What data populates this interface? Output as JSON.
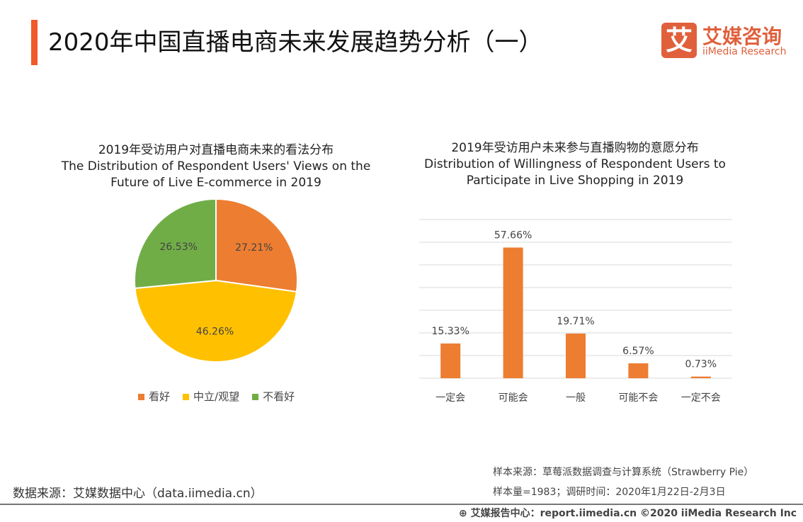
{
  "header": {
    "title": "2020年中国直播电商未来发展趋势分析（一）",
    "accent_color": "#f0592a"
  },
  "logo": {
    "mark": "艾",
    "cn": "艾媒咨询",
    "en": "iiMedia Research",
    "color": "#e0603c"
  },
  "chart_data": [
    {
      "type": "pie",
      "title_cn": "2019年受访用户对直播电商未来的看法分布",
      "title_en": "The Distribution of Respondent Users' Views on the Future of Live E-commerce in 2019",
      "title_en_lines": [
        "The Distribution of Respondent Users' Views on the",
        "Future of Live E-commerce in 2019"
      ],
      "slices": [
        {
          "name": "看好",
          "value": 27.21,
          "label": "27.21%",
          "color": "#ed7d31"
        },
        {
          "name": "中立/观望",
          "value": 46.26,
          "label": "46.26%",
          "color": "#ffc000"
        },
        {
          "name": "不看好",
          "value": 26.53,
          "label": "26.53%",
          "color": "#70ad47"
        }
      ],
      "legend_placement": "bottom"
    },
    {
      "type": "bar",
      "title_cn": "2019年受访用户未来参与直播购物的意愿分布",
      "title_en_lines": [
        "Distribution of Willingness of Respondent Users to",
        "Participate in Live Shopping in 2019"
      ],
      "categories": [
        "一定会",
        "可能会",
        "一般",
        "可能不会",
        "一定不会"
      ],
      "values": [
        15.33,
        57.66,
        19.71,
        6.57,
        0.73
      ],
      "labels": [
        "15.33%",
        "57.66%",
        "19.71%",
        "6.57%",
        "0.73%"
      ],
      "ylim": [
        0,
        70
      ],
      "grid": true,
      "color": "#ed7d31"
    }
  ],
  "source": {
    "left": "数据来源：艾媒数据中心（data.iimedia.cn）",
    "sample_source": "样本来源：草莓派数据调查与计算系统（Strawberry Pie）",
    "sample_info": "样本量=1983；调研时间：2020年1月22日-2月3日"
  },
  "footer": {
    "text": "艾媒报告中心：report.iimedia.cn  ©2020  iiMedia Research  Inc"
  }
}
